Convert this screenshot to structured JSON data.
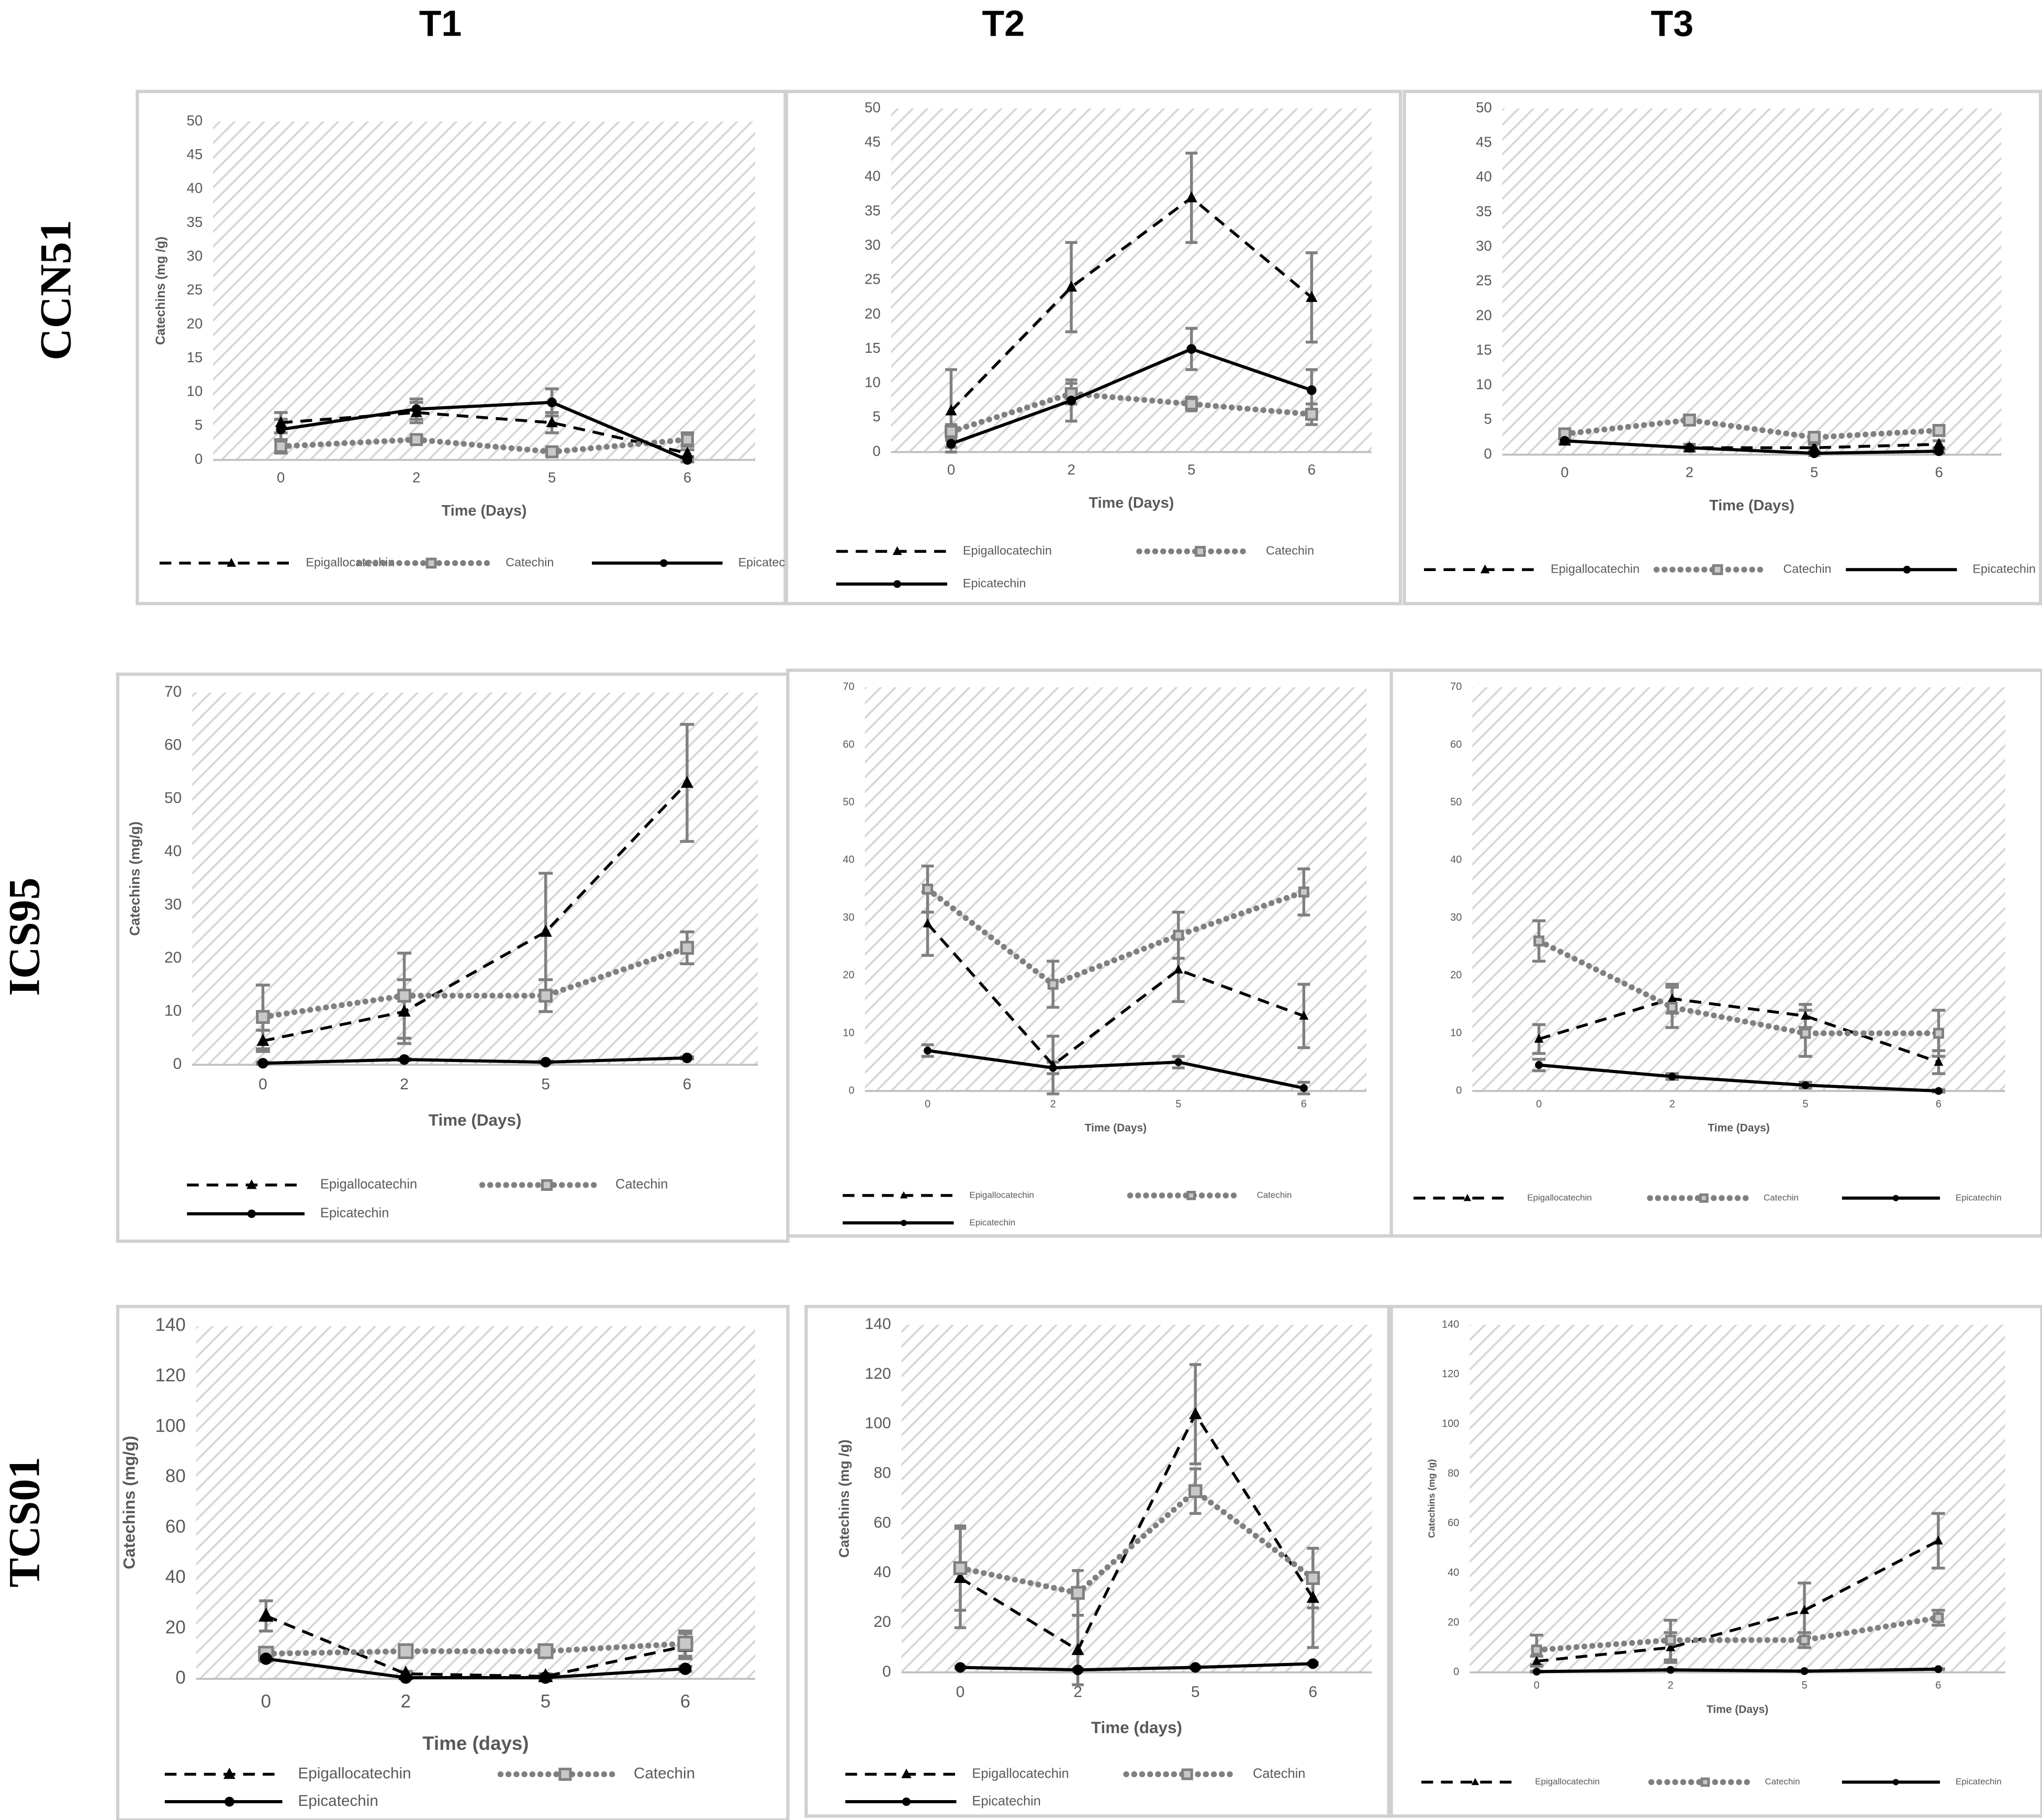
{
  "column_headers": [
    "T1",
    "T2",
    "T3"
  ],
  "row_labels": [
    "CCN51",
    "ICS95",
    "TCS01"
  ],
  "chart_data": [
    {
      "type": "line",
      "x_label": "Time (Days)",
      "y_label": "Catechins (mg /g)",
      "categories": [
        "0",
        "2",
        "5",
        "6"
      ],
      "ylim": [
        0,
        50
      ],
      "yticks": [
        0,
        5,
        10,
        15,
        20,
        25,
        30,
        35,
        40,
        45,
        50
      ],
      "series": [
        {
          "name": "Epigallocatechin",
          "color": "#000000",
          "style": "dashed",
          "marker": "triangle",
          "values": [
            5.5,
            7,
            5.5,
            1
          ],
          "errors": [
            1.5,
            1.5,
            1.5,
            0.5
          ]
        },
        {
          "name": "Catechin",
          "color": "#808080",
          "style": "dotted",
          "marker": "square",
          "values": [
            2,
            3,
            1.2,
            3
          ],
          "errors": [
            1,
            0.5,
            0.5,
            1
          ]
        },
        {
          "name": "Epicatechin",
          "color": "#000000",
          "style": "solid",
          "marker": "circle",
          "values": [
            4.5,
            7.5,
            8.5,
            0
          ],
          "errors": [
            1.5,
            1.5,
            2,
            0.3
          ]
        }
      ]
    },
    {
      "type": "line",
      "x_label": "Time (Days)",
      "categories": [
        "0",
        "2",
        "5",
        "6"
      ],
      "ylim": [
        0,
        50
      ],
      "yticks": [
        0,
        5,
        10,
        15,
        20,
        25,
        30,
        35,
        40,
        45,
        50
      ],
      "series": [
        {
          "name": "Epigallocatechin",
          "color": "#000000",
          "style": "dashed",
          "marker": "triangle",
          "values": [
            6,
            24,
            37,
            22.5
          ],
          "errors": [
            6,
            6.5,
            6.5,
            6.5
          ]
        },
        {
          "name": "Catechin",
          "color": "#808080",
          "style": "dotted",
          "marker": "square",
          "values": [
            3,
            8.5,
            7,
            5.5
          ],
          "errors": [
            1,
            1.5,
            1,
            1.5
          ]
        },
        {
          "name": "Epicatechin",
          "color": "#000000",
          "style": "solid",
          "marker": "circle",
          "values": [
            1.2,
            7.5,
            15,
            9
          ],
          "errors": [
            0.5,
            3,
            3,
            3
          ]
        }
      ]
    },
    {
      "type": "line",
      "x_label": "Time (Days)",
      "categories": [
        "0",
        "2",
        "5",
        "6"
      ],
      "ylim": [
        0,
        50
      ],
      "yticks": [
        0,
        5,
        10,
        15,
        20,
        25,
        30,
        35,
        40,
        45,
        50
      ],
      "series": [
        {
          "name": "Epigallocatechin",
          "color": "#000000",
          "style": "dashed",
          "marker": "triangle",
          "values": [
            2,
            1,
            1,
            1.5
          ],
          "errors": [
            0.5,
            0.5,
            0.5,
            0.5
          ]
        },
        {
          "name": "Catechin",
          "color": "#808080",
          "style": "dotted",
          "marker": "square",
          "values": [
            3,
            5,
            2.5,
            3.5
          ],
          "errors": [
            0.5,
            0.5,
            0.5,
            0.5
          ]
        },
        {
          "name": "Epicatechin",
          "color": "#000000",
          "style": "solid",
          "marker": "circle",
          "values": [
            2,
            1,
            0.2,
            0.5
          ],
          "errors": [
            0.3,
            0.3,
            0.3,
            0.3
          ]
        }
      ]
    },
    {
      "type": "line",
      "x_label": "Time (Days)",
      "y_label": "Catechins (mg/g)",
      "categories": [
        "0",
        "2",
        "5",
        "6"
      ],
      "ylim": [
        0,
        70
      ],
      "yticks": [
        0,
        10,
        20,
        30,
        40,
        50,
        60,
        70
      ],
      "series": [
        {
          "name": "Epigallocatechin",
          "color": "#000000",
          "style": "dashed",
          "marker": "triangle",
          "values": [
            4.5,
            10,
            25,
            53
          ],
          "errors": [
            2,
            6,
            11,
            11
          ]
        },
        {
          "name": "Catechin",
          "color": "#808080",
          "style": "dotted",
          "marker": "square",
          "values": [
            9,
            13,
            13,
            22
          ],
          "errors": [
            6,
            8,
            3,
            3
          ]
        },
        {
          "name": "Epicatechin",
          "color": "#000000",
          "style": "solid",
          "marker": "circle",
          "values": [
            0.3,
            1,
            0.5,
            1.3
          ],
          "errors": [
            0.2,
            0.2,
            0.2,
            0.2
          ]
        }
      ]
    },
    {
      "type": "line",
      "x_label": "Time (Days)",
      "categories": [
        "0",
        "2",
        "5",
        "6"
      ],
      "ylim": [
        0,
        70
      ],
      "yticks": [
        0,
        10,
        20,
        30,
        40,
        50,
        60,
        70
      ],
      "series": [
        {
          "name": "Epigallocatechin",
          "color": "#000000",
          "style": "dashed",
          "marker": "triangle",
          "values": [
            29,
            4.5,
            21,
            13
          ],
          "errors": [
            5.5,
            5,
            5.5,
            5.5
          ]
        },
        {
          "name": "Catechin",
          "color": "#808080",
          "style": "dotted",
          "marker": "square",
          "values": [
            35,
            18.5,
            27,
            34.5
          ],
          "errors": [
            4,
            4,
            4,
            4
          ]
        },
        {
          "name": "Epicatechin",
          "color": "#000000",
          "style": "solid",
          "marker": "circle",
          "values": [
            7,
            4,
            5,
            0.5
          ],
          "errors": [
            1,
            1,
            1,
            1
          ]
        }
      ]
    },
    {
      "type": "line",
      "x_label": "Time (Days)",
      "categories": [
        "0",
        "2",
        "5",
        "6"
      ],
      "ylim": [
        0,
        70
      ],
      "yticks": [
        0,
        10,
        20,
        30,
        40,
        50,
        60,
        70
      ],
      "series": [
        {
          "name": "Epigallocatechin",
          "color": "#000000",
          "style": "dashed",
          "marker": "triangle",
          "values": [
            9,
            16,
            13,
            5
          ],
          "errors": [
            2.5,
            2.5,
            2,
            2
          ]
        },
        {
          "name": "Catechin",
          "color": "#808080",
          "style": "dotted",
          "marker": "square",
          "values": [
            26,
            14.5,
            10,
            10
          ],
          "errors": [
            3.5,
            3.5,
            4,
            4
          ]
        },
        {
          "name": "Epicatechin",
          "color": "#000000",
          "style": "solid",
          "marker": "circle",
          "values": [
            4.5,
            2.5,
            1,
            0
          ],
          "errors": [
            1,
            0.5,
            0.5,
            0.2
          ]
        }
      ]
    },
    {
      "type": "line",
      "x_label": "Time (days)",
      "y_label": "Catechins (mg/g)",
      "categories": [
        "0",
        "2",
        "5",
        "6"
      ],
      "ylim": [
        0,
        140
      ],
      "yticks": [
        0,
        20,
        40,
        60,
        80,
        100,
        120,
        140
      ],
      "series": [
        {
          "name": "Epigallocatechin",
          "color": "#000000",
          "style": "dashed",
          "marker": "triangle",
          "values": [
            25,
            2,
            1,
            13
          ],
          "errors": [
            6,
            1,
            1,
            5
          ]
        },
        {
          "name": "Catechin",
          "color": "#808080",
          "style": "dotted",
          "marker": "square",
          "values": [
            10,
            11,
            11,
            14
          ],
          "errors": [
            2,
            2,
            2,
            5
          ]
        },
        {
          "name": "Epicatechin",
          "color": "#000000",
          "style": "solid",
          "marker": "circle",
          "values": [
            8,
            0.5,
            0.5,
            4
          ],
          "errors": [
            1,
            0.5,
            0.5,
            1
          ]
        }
      ]
    },
    {
      "type": "line",
      "x_label": "Time (days)",
      "y_label": "Catechins (mg /g)",
      "categories": [
        "0",
        "2",
        "5",
        "6"
      ],
      "ylim": [
        0,
        140
      ],
      "yticks": [
        0,
        20,
        40,
        60,
        80,
        100,
        120,
        140
      ],
      "series": [
        {
          "name": "Epigallocatechin",
          "color": "#000000",
          "style": "dashed",
          "marker": "triangle",
          "values": [
            38,
            9,
            104,
            30
          ],
          "errors": [
            20,
            14,
            20,
            20
          ]
        },
        {
          "name": "Catechin",
          "color": "#808080",
          "style": "dotted",
          "marker": "square",
          "values": [
            42,
            32,
            73,
            38
          ],
          "errors": [
            17,
            9,
            9,
            12
          ]
        },
        {
          "name": "Epicatechin",
          "color": "#000000",
          "style": "solid",
          "marker": "circle",
          "values": [
            2,
            1,
            2,
            3.5
          ],
          "errors": [
            0.5,
            0.5,
            0.5,
            0.5
          ]
        }
      ]
    },
    {
      "type": "line",
      "x_label": "Time (Days)",
      "y_label": "Catechins (mg /g)",
      "categories": [
        "0",
        "2",
        "5",
        "6"
      ],
      "ylim": [
        0,
        140
      ],
      "yticks": [
        0,
        20,
        40,
        60,
        80,
        100,
        120,
        140
      ],
      "series": [
        {
          "name": "Epigallocatechin",
          "color": "#000000",
          "style": "dashed",
          "marker": "triangle",
          "values": [
            4.5,
            10,
            25,
            53
          ],
          "errors": [
            2,
            6,
            11,
            11
          ]
        },
        {
          "name": "Catechin",
          "color": "#808080",
          "style": "dotted",
          "marker": "square",
          "values": [
            9,
            13,
            13,
            22
          ],
          "errors": [
            6,
            8,
            3,
            3
          ]
        },
        {
          "name": "Epicatechin",
          "color": "#000000",
          "style": "solid",
          "marker": "circle",
          "values": [
            0.3,
            1,
            0.5,
            1.3
          ],
          "errors": [
            0.2,
            0.2,
            0.2,
            0.2
          ]
        }
      ]
    }
  ]
}
